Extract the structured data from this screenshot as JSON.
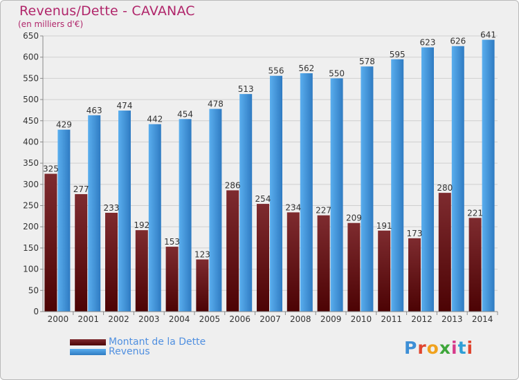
{
  "header": {
    "title": "Revenus/Dette - CAVANAC",
    "subtitle": "(en milliers d'€)"
  },
  "legend": {
    "debt_label": "Montant de la Dette",
    "revenue_label": "Revenus"
  },
  "logo": {
    "text": "Proxiti"
  },
  "colors": {
    "debt_top": "#7e2b2f",
    "debt_bottom": "#4c0304",
    "revenue_top": "#5aaeee",
    "revenue_bottom": "#2f7bc2",
    "title": "#b0256a",
    "legend_text": "#4f8fe0"
  },
  "chart_data": {
    "type": "bar",
    "title": "Revenus/Dette - CAVANAC",
    "subtitle": "(en milliers d'€)",
    "categories": [
      "2000",
      "2001",
      "2002",
      "2003",
      "2004",
      "2005",
      "2006",
      "2007",
      "2008",
      "2009",
      "2010",
      "2011",
      "2012",
      "2013",
      "2014"
    ],
    "series": [
      {
        "name": "Montant de la Dette",
        "values": [
          325,
          277,
          233,
          192,
          153,
          123,
          286,
          254,
          234,
          227,
          209,
          191,
          173,
          280,
          221
        ]
      },
      {
        "name": "Revenus",
        "values": [
          429,
          463,
          474,
          442,
          454,
          478,
          513,
          556,
          562,
          550,
          578,
          595,
          623,
          626,
          641
        ]
      }
    ],
    "ylim": [
      0,
      650
    ],
    "yticks": [
      0,
      50,
      100,
      150,
      200,
      250,
      300,
      350,
      400,
      450,
      500,
      550,
      600,
      650
    ],
    "grid": true,
    "legend_position": "bottom-left"
  }
}
